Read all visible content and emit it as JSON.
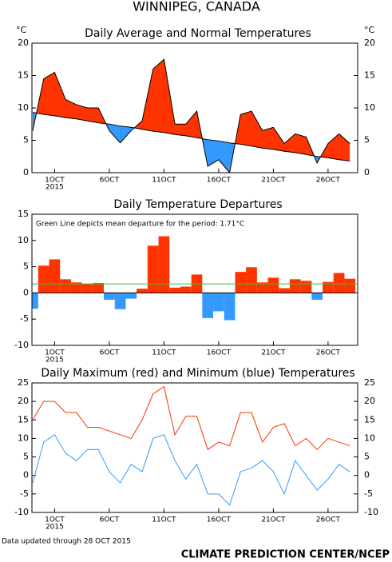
{
  "header": {
    "title": "WINNIPEG, CANADA"
  },
  "footer": {
    "updated": "Data updated through 28 OCT 2015",
    "source": "CLIMATE PREDICTION CENTER/NCEP"
  },
  "chart_data": [
    {
      "type": "area",
      "title": "Daily Average and Normal Temperatures",
      "y_unit": "°C",
      "right_ticks": true,
      "categories": [
        null,
        null,
        "1OCT",
        null,
        null,
        null,
        null,
        "6OCT",
        null,
        null,
        null,
        null,
        "11OCT",
        null,
        null,
        null,
        null,
        "16OCT",
        null,
        null,
        null,
        null,
        "21OCT",
        null,
        null,
        null,
        null,
        "26OCT",
        null,
        null
      ],
      "year_label": "2015",
      "above_color": "#ff3300",
      "below_color": "#3399ff",
      "series": [
        {
          "color": "#000000",
          "values": [
            6.5,
            14.5,
            15.5,
            11.3,
            10.5,
            10,
            10,
            6.5,
            4.6,
            6.5,
            8,
            16,
            17.5,
            7.5,
            7.5,
            9.5,
            1,
            2,
            0,
            9,
            9.5,
            6.5,
            7,
            4.5,
            6,
            5.5,
            1.5,
            4.5,
            6,
            4.5
          ]
        },
        {
          "color": "#000000",
          "values": [
            9.3,
            9.0,
            8.8,
            8.5,
            8.3,
            8.0,
            7.7,
            7.5,
            7.2,
            7.0,
            6.7,
            6.4,
            6.2,
            5.9,
            5.7,
            5.4,
            5.1,
            4.9,
            4.6,
            4.4,
            4.1,
            3.8,
            3.6,
            3.3,
            3.1,
            2.8,
            2.5,
            2.3,
            2.0,
            1.8
          ]
        }
      ],
      "ylim": [
        0,
        20
      ],
      "yticks": [
        0,
        5,
        10,
        15,
        20
      ]
    },
    {
      "type": "bar",
      "title": "Daily Temperature Departures",
      "annotation": "Green Line depicts mean departure for the period: 1.71°C",
      "mean_departure": 1.71,
      "mean_color": "#33cc33",
      "categories": [
        null,
        null,
        "1OCT",
        null,
        null,
        null,
        null,
        "6OCT",
        null,
        null,
        null,
        null,
        "11OCT",
        null,
        null,
        null,
        null,
        "16OCT",
        null,
        null,
        null,
        null,
        "21OCT",
        null,
        null,
        null,
        null,
        "26OCT",
        null,
        null
      ],
      "year_label": "2015",
      "positive_color": "#ff3300",
      "negative_color": "#3399ff",
      "values": [
        -3,
        5.2,
        6.4,
        2.6,
        2.0,
        1.7,
        1.9,
        -1.3,
        -3.1,
        -1.1,
        0.8,
        9.0,
        10.8,
        1.0,
        1.2,
        3.5,
        -4.8,
        -3.5,
        -5.2,
        4.0,
        4.9,
        2.0,
        2.9,
        0.9,
        2.6,
        2.3,
        -1.3,
        2.1,
        3.8,
        2.7
      ],
      "ylim": [
        -10,
        15
      ],
      "yticks": [
        -10,
        -5,
        0,
        5,
        10,
        15
      ]
    },
    {
      "type": "line",
      "title": "Daily Maximum (red) and Minimum (blue) Temperatures",
      "right_ticks": true,
      "categories": [
        null,
        null,
        "1OCT",
        null,
        null,
        null,
        null,
        "6OCT",
        null,
        null,
        null,
        null,
        "11OCT",
        null,
        null,
        null,
        null,
        "16OCT",
        null,
        null,
        null,
        null,
        "21OCT",
        null,
        null,
        null,
        null,
        "26OCT",
        null,
        null
      ],
      "year_label": "2015",
      "series": [
        {
          "color": "#ff3300",
          "values": [
            15,
            20,
            20,
            17,
            17,
            13,
            13,
            12,
            11,
            10,
            15,
            22,
            24,
            11,
            16,
            16,
            7,
            9,
            8,
            17,
            17,
            9,
            13,
            14,
            8,
            10,
            7,
            10,
            9,
            8
          ]
        },
        {
          "color": "#3399ff",
          "values": [
            -2,
            9,
            11,
            6,
            4,
            7,
            7,
            1,
            -2,
            3,
            1,
            10,
            11,
            4,
            -1,
            3,
            -5,
            -5,
            -8,
            1,
            2,
            4,
            1,
            -5,
            4,
            0,
            -4,
            -1,
            3,
            1
          ]
        }
      ],
      "ylim": [
        -10,
        25
      ],
      "yticks": [
        -10,
        -5,
        0,
        5,
        10,
        15,
        20,
        25
      ]
    }
  ]
}
